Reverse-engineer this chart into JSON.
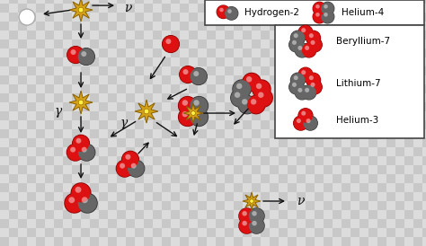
{
  "proton_color": "#dd1111",
  "proton_edge": "#880000",
  "neutron_color": "#666666",
  "neutron_edge": "#333333",
  "burst_outer": "#d4a017",
  "burst_inner": "#ffee44",
  "arrow_color": "#111111",
  "box_fc": "#ffffff",
  "box_ec": "#444444",
  "grid_a": "#c8c8c8",
  "grid_b": "#dcdcdc",
  "tile": 10,
  "font_label": 7.5,
  "font_greek": 10,
  "legend1_items": [
    {
      "name": "Hydrogen-2",
      "p": 1,
      "n": 1
    },
    {
      "name": "Helium-4",
      "p": 2,
      "n": 2
    }
  ],
  "legend2_items": [
    {
      "name": "Beryllium-7",
      "p": 4,
      "n": 3
    },
    {
      "name": "Lithium-7",
      "p": 3,
      "n": 4
    },
    {
      "name": "Helium-3",
      "p": 2,
      "n": 1
    }
  ]
}
